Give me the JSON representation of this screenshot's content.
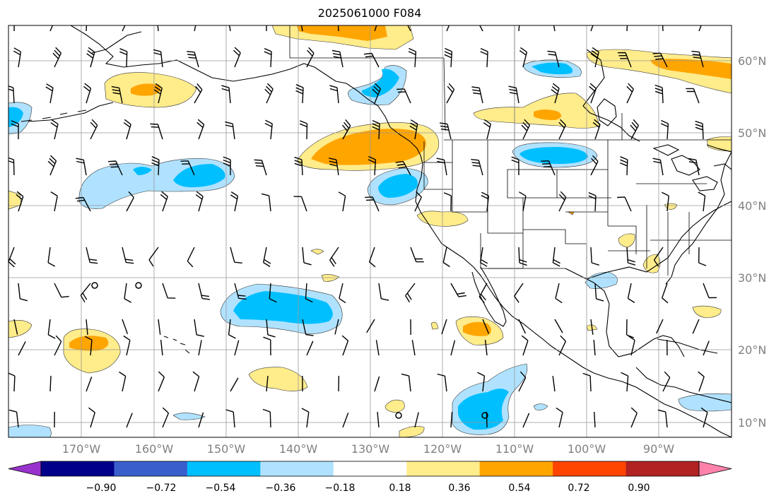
{
  "title": "2025061000 F084",
  "latitude_labels": [
    "60°N",
    "50°N",
    "40°N",
    "30°N",
    "20°N",
    "10°N"
  ],
  "longitude_labels": [
    "170°W",
    "160°W",
    "150°W",
    "140°W",
    "130°W",
    "120°W",
    "110°W",
    "100°W",
    "90°W"
  ],
  "colorbar": {
    "colors": [
      "#9932cc",
      "#00008b",
      "#3a5fcd",
      "#00bfff",
      "#b0e2ff",
      "#ffffff",
      "#ffec8b",
      "#ffa500",
      "#ff4500",
      "#b22222",
      "#ff82ab"
    ],
    "labels": [
      "−0.90",
      "−0.72",
      "−0.54",
      "−0.36",
      "−0.18",
      "0.18",
      "0.36",
      "0.54",
      "0.72",
      "0.90"
    ]
  },
  "colors": {
    "light_blue": "#b0e2ff",
    "blue": "#00bfff",
    "light_yellow": "#ffec8b",
    "orange": "#ffa500",
    "grid": "#999999",
    "coast": "#000000"
  },
  "map_type": "shaded anomaly field with wind barbs, coastlines, state borders and lat/lon grid"
}
